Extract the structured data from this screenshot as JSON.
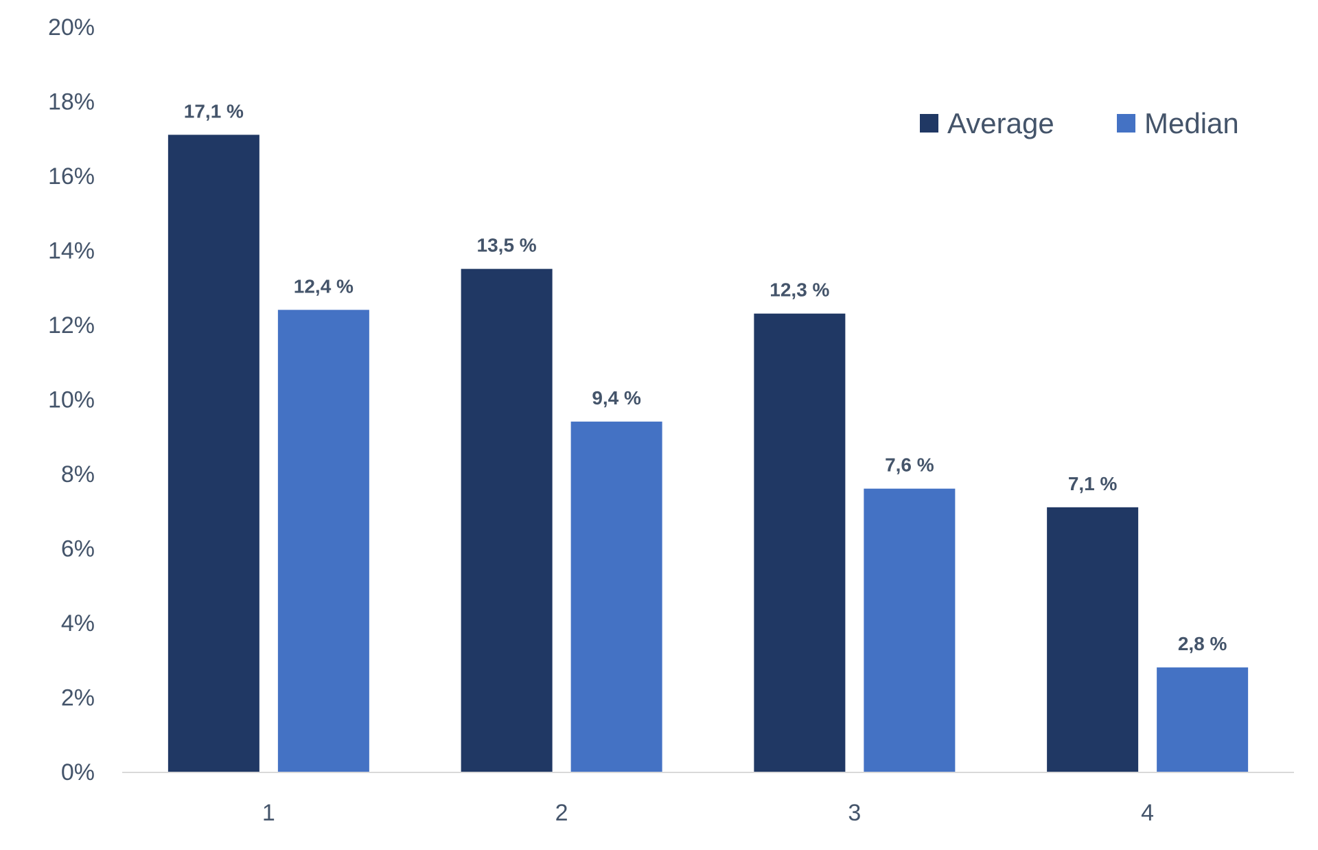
{
  "chart_data": {
    "type": "bar",
    "categories": [
      "1",
      "2",
      "3",
      "4"
    ],
    "series": [
      {
        "name": "Average",
        "values": [
          17.1,
          13.5,
          12.3,
          7.1
        ],
        "labels": [
          "17,1 %",
          "13,5 %",
          "12,3 %",
          "7,1 %"
        ],
        "color": "#203864"
      },
      {
        "name": "Median",
        "values": [
          12.4,
          9.4,
          7.6,
          2.8
        ],
        "labels": [
          "12,4 %",
          "9,4 %",
          "7,6 %",
          "2,8 %"
        ],
        "color": "#4472c4"
      }
    ],
    "yticks": [
      "0%",
      "2%",
      "4%",
      "6%",
      "8%",
      "10%",
      "12%",
      "14%",
      "16%",
      "18%",
      "20%"
    ],
    "ylim": [
      0,
      20
    ],
    "title": "",
    "xlabel": "",
    "ylabel": "",
    "grid": false,
    "legend_position": "top-right",
    "axis_color": "#d9d9d9",
    "text_color": "#44546a"
  }
}
